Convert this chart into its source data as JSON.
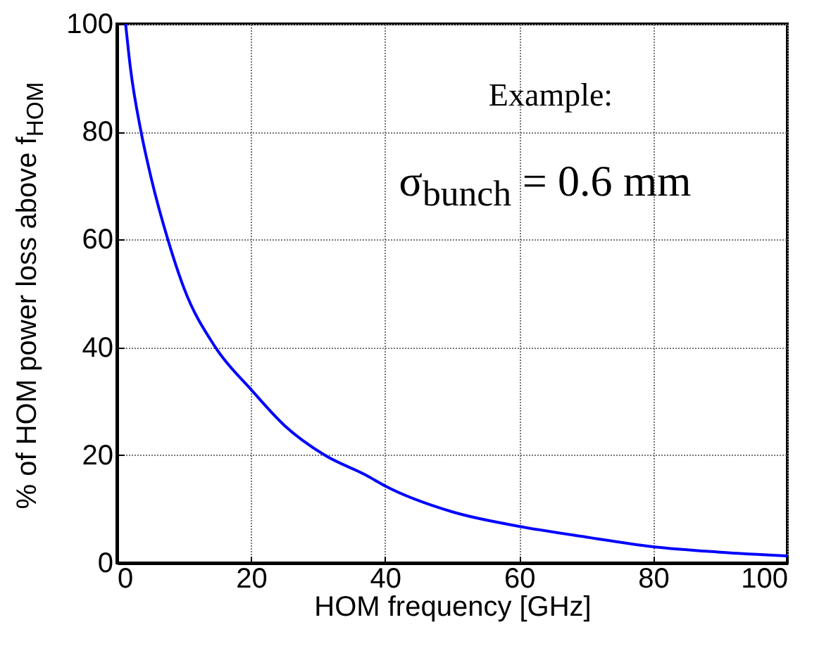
{
  "chart_data": {
    "type": "line",
    "xlabel": "HOM frequency [GHz]",
    "ylabel": "% of HOM power loss above f$_{HOM}$",
    "annotations": [
      "Example:",
      "σ$_{bunch}$ = 0.6 mm"
    ],
    "x": [
      1.3,
      2,
      3.6,
      5,
      7.6,
      10,
      14.7,
      20,
      25,
      31,
      37.3,
      40,
      50,
      60,
      70,
      80,
      90,
      100
    ],
    "series": [
      {
        "color": "#0000ff",
        "values": [
          100,
          92,
          80,
          72,
          60,
          51,
          40,
          32.2,
          25.5,
          20,
          16.2,
          14.3,
          9.5,
          6.8,
          4.8,
          3.0,
          2.0,
          1.3
        ]
      }
    ],
    "xlim": [
      0,
      100
    ],
    "ylim": [
      0,
      100
    ],
    "xticks": [
      0,
      20,
      40,
      60,
      80,
      100
    ],
    "yticks": [
      0,
      20,
      40,
      60,
      80,
      100
    ],
    "grid": true,
    "line_style": "solid",
    "marker": "none"
  }
}
